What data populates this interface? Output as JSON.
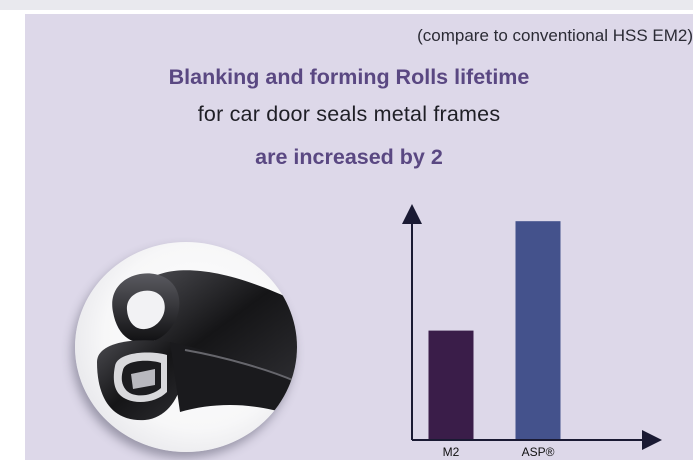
{
  "note": "(compare to conventional HSS EM2)",
  "headline": {
    "line1": "Blanking and forming Rolls lifetime",
    "line2": "for car door seals metal frames",
    "line3": "are increased by 2"
  },
  "photo": {
    "subject": "car-door-seal-icon"
  },
  "colors": {
    "panel_bg": "#ddd8e9",
    "headline_accent": "#5a4882",
    "bar_m2": "#3a1d49",
    "bar_asp": "#44528c",
    "axis": "#1a1a33"
  },
  "chart_data": {
    "type": "bar",
    "categories": [
      "M2",
      "ASP®"
    ],
    "values": [
      1,
      2
    ],
    "title": "",
    "xlabel": "",
    "ylabel": "",
    "ylim": [
      0,
      2.2
    ],
    "grid": false,
    "legend": "none",
    "bar_colors": [
      "#3a1d49",
      "#44528c"
    ]
  }
}
